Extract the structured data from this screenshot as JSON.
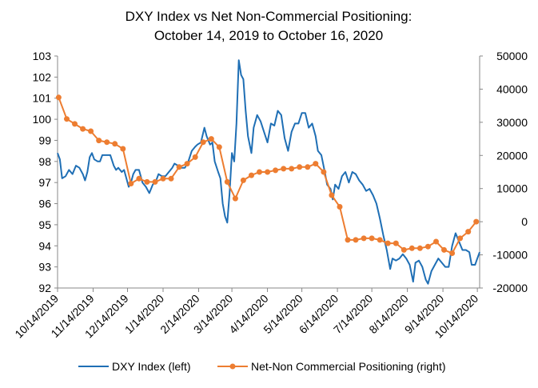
{
  "chart_data": {
    "type": "line",
    "title_line1": "DXY Index vs Net Non-Commercial Positioning:",
    "title_line2": "October 14, 2019 to October 16, 2020",
    "x_ticks": [
      "10/14/2019",
      "11/14/2019",
      "12/14/2019",
      "1/14/2020",
      "2/14/2020",
      "3/14/2020",
      "4/14/2020",
      "5/14/2020",
      "6/14/2020",
      "7/14/2020",
      "8/14/2020",
      "9/14/2020",
      "10/14/2020"
    ],
    "x_range": [
      "2019-10-14",
      "2020-10-16"
    ],
    "y_left": {
      "min": 92,
      "max": 103,
      "ticks": [
        "92",
        "93",
        "94",
        "95",
        "96",
        "97",
        "98",
        "99",
        "100",
        "101",
        "102",
        "103"
      ]
    },
    "y_right": {
      "min": -20000,
      "max": 50000,
      "ticks": [
        "-20000",
        "-10000",
        "0",
        "10000",
        "20000",
        "30000",
        "40000",
        "50000"
      ]
    },
    "grid": false,
    "legend_position": "bottom",
    "series": [
      {
        "name": "DXY Index (left)",
        "axis": "left",
        "color": "#1f6fb5",
        "points": [
          [
            "2019-10-14",
            98.4
          ],
          [
            "2019-10-16",
            98.1
          ],
          [
            "2019-10-18",
            97.2
          ],
          [
            "2019-10-21",
            97.3
          ],
          [
            "2019-10-24",
            97.6
          ],
          [
            "2019-10-27",
            97.4
          ],
          [
            "2019-10-30",
            97.8
          ],
          [
            "2019-11-02",
            97.7
          ],
          [
            "2019-11-05",
            97.4
          ],
          [
            "2019-11-07",
            97.1
          ],
          [
            "2019-11-09",
            97.5
          ],
          [
            "2019-11-11",
            98.2
          ],
          [
            "2019-11-13",
            98.4
          ],
          [
            "2019-11-15",
            98.1
          ],
          [
            "2019-11-18",
            98.0
          ],
          [
            "2019-11-20",
            98.0
          ],
          [
            "2019-11-22",
            98.3
          ],
          [
            "2019-11-25",
            98.3
          ],
          [
            "2019-11-27",
            98.3
          ],
          [
            "2019-11-29",
            98.3
          ],
          [
            "2019-12-02",
            97.8
          ],
          [
            "2019-12-04",
            97.6
          ],
          [
            "2019-12-06",
            97.7
          ],
          [
            "2019-12-09",
            97.5
          ],
          [
            "2019-12-11",
            97.6
          ],
          [
            "2019-12-13",
            97.2
          ],
          [
            "2019-12-15",
            96.8
          ],
          [
            "2019-12-17",
            97.0
          ],
          [
            "2019-12-19",
            97.4
          ],
          [
            "2019-12-21",
            97.6
          ],
          [
            "2019-12-24",
            97.6
          ],
          [
            "2019-12-27",
            97.0
          ],
          [
            "2019-12-30",
            96.8
          ],
          [
            "2020-01-02",
            96.5
          ],
          [
            "2020-01-05",
            96.9
          ],
          [
            "2020-01-08",
            97.1
          ],
          [
            "2020-01-10",
            97.4
          ],
          [
            "2020-01-13",
            97.3
          ],
          [
            "2020-01-16",
            97.3
          ],
          [
            "2020-01-19",
            97.5
          ],
          [
            "2020-01-22",
            97.7
          ],
          [
            "2020-01-24",
            97.9
          ],
          [
            "2020-01-27",
            97.8
          ],
          [
            "2020-01-30",
            97.7
          ],
          [
            "2020-02-02",
            97.7
          ],
          [
            "2020-02-05",
            98.0
          ],
          [
            "2020-02-08",
            98.5
          ],
          [
            "2020-02-11",
            98.7
          ],
          [
            "2020-02-13",
            98.8
          ],
          [
            "2020-02-16",
            98.9
          ],
          [
            "2020-02-19",
            99.6
          ],
          [
            "2020-02-21",
            99.2
          ],
          [
            "2020-02-24",
            98.8
          ],
          [
            "2020-02-26",
            98.9
          ],
          [
            "2020-02-28",
            98.0
          ],
          [
            "2020-03-02",
            97.5
          ],
          [
            "2020-03-04",
            97.2
          ],
          [
            "2020-03-06",
            96.0
          ],
          [
            "2020-03-08",
            95.4
          ],
          [
            "2020-03-10",
            95.1
          ],
          [
            "2020-03-12",
            96.5
          ],
          [
            "2020-03-14",
            98.4
          ],
          [
            "2020-03-16",
            98.0
          ],
          [
            "2020-03-18",
            99.8
          ],
          [
            "2020-03-20",
            102.8
          ],
          [
            "2020-03-22",
            102.1
          ],
          [
            "2020-03-24",
            101.9
          ],
          [
            "2020-03-26",
            100.4
          ],
          [
            "2020-03-28",
            99.2
          ],
          [
            "2020-03-31",
            98.4
          ],
          [
            "2020-04-02",
            99.6
          ],
          [
            "2020-04-05",
            100.2
          ],
          [
            "2020-04-08",
            99.9
          ],
          [
            "2020-04-11",
            99.4
          ],
          [
            "2020-04-14",
            98.9
          ],
          [
            "2020-04-17",
            99.8
          ],
          [
            "2020-04-20",
            99.7
          ],
          [
            "2020-04-23",
            100.4
          ],
          [
            "2020-04-26",
            100.2
          ],
          [
            "2020-04-29",
            99.1
          ],
          [
            "2020-05-02",
            98.5
          ],
          [
            "2020-05-05",
            99.4
          ],
          [
            "2020-05-08",
            99.8
          ],
          [
            "2020-05-11",
            99.8
          ],
          [
            "2020-05-14",
            100.3
          ],
          [
            "2020-05-17",
            100.3
          ],
          [
            "2020-05-20",
            99.6
          ],
          [
            "2020-05-23",
            99.8
          ],
          [
            "2020-05-26",
            99.2
          ],
          [
            "2020-05-28",
            98.5
          ],
          [
            "2020-05-31",
            98.3
          ],
          [
            "2020-06-03",
            97.5
          ],
          [
            "2020-06-05",
            96.9
          ],
          [
            "2020-06-08",
            96.7
          ],
          [
            "2020-06-10",
            96.2
          ],
          [
            "2020-06-12",
            96.9
          ],
          [
            "2020-06-15",
            96.7
          ],
          [
            "2020-06-18",
            97.3
          ],
          [
            "2020-06-21",
            97.5
          ],
          [
            "2020-06-24",
            97.0
          ],
          [
            "2020-06-27",
            97.5
          ],
          [
            "2020-06-30",
            97.4
          ],
          [
            "2020-07-03",
            97.1
          ],
          [
            "2020-07-06",
            96.9
          ],
          [
            "2020-07-09",
            96.6
          ],
          [
            "2020-07-12",
            96.7
          ],
          [
            "2020-07-15",
            96.4
          ],
          [
            "2020-07-18",
            96.0
          ],
          [
            "2020-07-21",
            95.3
          ],
          [
            "2020-07-24",
            94.5
          ],
          [
            "2020-07-27",
            93.8
          ],
          [
            "2020-07-30",
            92.9
          ],
          [
            "2020-08-01",
            93.4
          ],
          [
            "2020-08-04",
            93.3
          ],
          [
            "2020-08-07",
            93.4
          ],
          [
            "2020-08-10",
            93.6
          ],
          [
            "2020-08-13",
            93.4
          ],
          [
            "2020-08-16",
            93.1
          ],
          [
            "2020-08-19",
            92.3
          ],
          [
            "2020-08-21",
            93.2
          ],
          [
            "2020-08-24",
            93.3
          ],
          [
            "2020-08-27",
            93.0
          ],
          [
            "2020-08-30",
            92.4
          ],
          [
            "2020-09-01",
            92.2
          ],
          [
            "2020-09-04",
            92.8
          ],
          [
            "2020-09-07",
            93.1
          ],
          [
            "2020-09-10",
            93.4
          ],
          [
            "2020-09-13",
            93.2
          ],
          [
            "2020-09-16",
            93.0
          ],
          [
            "2020-09-19",
            93.0
          ],
          [
            "2020-09-22",
            94.0
          ],
          [
            "2020-09-25",
            94.6
          ],
          [
            "2020-09-28",
            94.2
          ],
          [
            "2020-10-01",
            93.8
          ],
          [
            "2020-10-04",
            93.8
          ],
          [
            "2020-10-07",
            93.7
          ],
          [
            "2020-10-09",
            93.1
          ],
          [
            "2020-10-12",
            93.1
          ],
          [
            "2020-10-14",
            93.4
          ],
          [
            "2020-10-16",
            93.7
          ]
        ]
      },
      {
        "name": "Net-Non Commercial Positioning (right)",
        "axis": "right",
        "color": "#ed7d31",
        "points": [
          [
            "2019-10-15",
            37500
          ],
          [
            "2019-10-22",
            31000
          ],
          [
            "2019-10-29",
            29500
          ],
          [
            "2019-11-05",
            28000
          ],
          [
            "2019-11-12",
            27300
          ],
          [
            "2019-11-19",
            24500
          ],
          [
            "2019-11-26",
            24000
          ],
          [
            "2019-12-03",
            23500
          ],
          [
            "2019-12-10",
            22000
          ],
          [
            "2019-12-17",
            11500
          ],
          [
            "2019-12-24",
            13000
          ],
          [
            "2019-12-31",
            12000
          ],
          [
            "2020-01-07",
            12000
          ],
          [
            "2020-01-14",
            13000
          ],
          [
            "2020-01-21",
            13000
          ],
          [
            "2020-01-28",
            16500
          ],
          [
            "2020-02-04",
            17500
          ],
          [
            "2020-02-11",
            19500
          ],
          [
            "2020-02-18",
            24000
          ],
          [
            "2020-02-25",
            25000
          ],
          [
            "2020-03-03",
            22500
          ],
          [
            "2020-03-10",
            12000
          ],
          [
            "2020-03-17",
            7000
          ],
          [
            "2020-03-24",
            12500
          ],
          [
            "2020-03-31",
            14000
          ],
          [
            "2020-04-07",
            15000
          ],
          [
            "2020-04-14",
            15000
          ],
          [
            "2020-04-21",
            15500
          ],
          [
            "2020-04-28",
            16000
          ],
          [
            "2020-05-05",
            16000
          ],
          [
            "2020-05-12",
            16500
          ],
          [
            "2020-05-19",
            16500
          ],
          [
            "2020-05-26",
            17500
          ],
          [
            "2020-06-02",
            15000
          ],
          [
            "2020-06-09",
            8000
          ],
          [
            "2020-06-16",
            4500
          ],
          [
            "2020-06-23",
            -5500
          ],
          [
            "2020-06-30",
            -5500
          ],
          [
            "2020-07-07",
            -5000
          ],
          [
            "2020-07-14",
            -5000
          ],
          [
            "2020-07-21",
            -5500
          ],
          [
            "2020-07-28",
            -6500
          ],
          [
            "2020-08-04",
            -6500
          ],
          [
            "2020-08-11",
            -8500
          ],
          [
            "2020-08-18",
            -8000
          ],
          [
            "2020-08-25",
            -8000
          ],
          [
            "2020-09-01",
            -7500
          ],
          [
            "2020-09-08",
            -6000
          ],
          [
            "2020-09-15",
            -8500
          ],
          [
            "2020-09-22",
            -9500
          ],
          [
            "2020-09-29",
            -5000
          ],
          [
            "2020-10-06",
            -3000
          ],
          [
            "2020-10-13",
            0
          ]
        ]
      }
    ]
  }
}
